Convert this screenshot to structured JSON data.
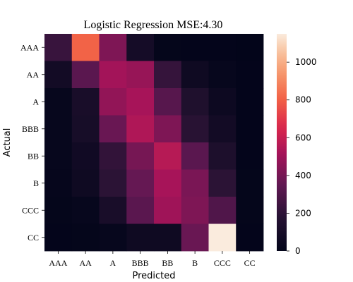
{
  "chart_data": {
    "type": "heatmap",
    "title": "Logistic Regression MSE:4.30",
    "xlabel": "Predicted",
    "ylabel": "Actual",
    "x_categories": [
      "AAA",
      "AA",
      "A",
      "BBB",
      "BB",
      "B",
      "CCC",
      "CC"
    ],
    "y_categories": [
      "AAA",
      "AA",
      "A",
      "BBB",
      "BB",
      "B",
      "CCC",
      "CC"
    ],
    "values": [
      [
        230,
        810,
        420,
        90,
        10,
        5,
        5,
        0
      ],
      [
        80,
        330,
        510,
        480,
        220,
        60,
        20,
        5
      ],
      [
        20,
        110,
        470,
        520,
        320,
        140,
        50,
        5
      ],
      [
        20,
        100,
        370,
        540,
        420,
        180,
        80,
        5
      ],
      [
        20,
        70,
        210,
        400,
        560,
        330,
        130,
        5
      ],
      [
        15,
        60,
        190,
        360,
        520,
        410,
        190,
        10
      ],
      [
        10,
        20,
        110,
        330,
        500,
        420,
        300,
        10
      ],
      [
        5,
        10,
        20,
        60,
        60,
        370,
        1150,
        5
      ]
    ],
    "colorbar": {
      "min": 0,
      "max": 1150,
      "ticks": [
        0,
        200,
        400,
        600,
        800,
        1000
      ]
    },
    "colormap": "rocket",
    "grid": false
  }
}
